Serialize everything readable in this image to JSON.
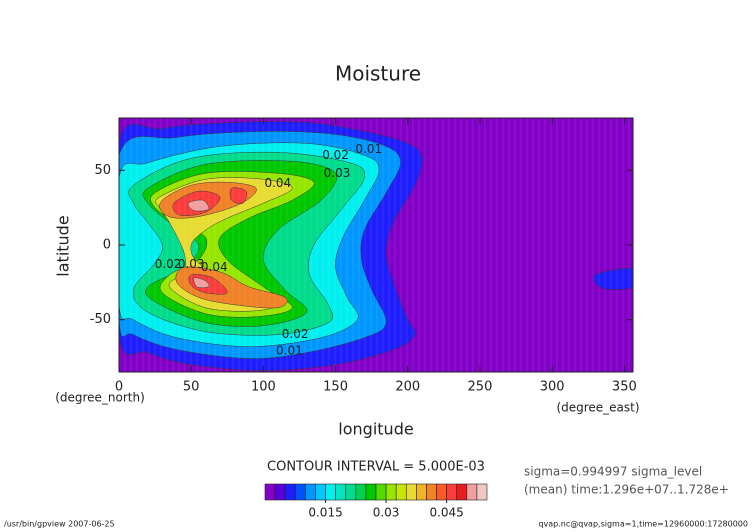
{
  "chart_data": {
    "type": "contour",
    "title": "Moisture",
    "xlabel": "longitude",
    "ylabel": "latitude",
    "xunit": "(degree_east)",
    "yunit": "(degree_north)",
    "xlim": [
      0,
      356
    ],
    "ylim": [
      -85,
      85
    ],
    "xticks": [
      0,
      50,
      100,
      150,
      200,
      250,
      300,
      350
    ],
    "yticks": [
      -50,
      0,
      50
    ],
    "contour_interval": "CONTOUR INTERVAL = 5.000E-03",
    "info": [
      "sigma=0.994997 sigma_level",
      "(mean) time:1.296e+07..1.728e+"
    ],
    "footer_left": "/usr/bin/gpview  2007-06-25",
    "footer_right": "qvap.nc@qvap,sigma=1,time=12960000:17280000",
    "colorbar": {
      "lim": [
        0,
        0.055
      ],
      "levels": [
        0,
        0.0025,
        0.005,
        0.0075,
        0.01,
        0.0125,
        0.015,
        0.0175,
        0.02,
        0.0225,
        0.025,
        0.0275,
        0.03,
        0.0325,
        0.035,
        0.0375,
        0.04,
        0.0425,
        0.045,
        0.0475,
        0.05,
        0.0525
      ],
      "colors": [
        "#8200c8",
        "#5a00dc",
        "#1e1eff",
        "#0050ff",
        "#0096ff",
        "#00c8ff",
        "#00f0f0",
        "#00e6c0",
        "#00dc8c",
        "#00d250",
        "#00c800",
        "#50dc00",
        "#96e600",
        "#c8e600",
        "#e6dc32",
        "#f0b428",
        "#f08228",
        "#fa5a28",
        "#fa3c3c",
        "#e61e1e",
        "#f0a0a0",
        "#f0c8c8"
      ],
      "ticks": [
        0.015,
        0.03,
        0.045
      ]
    },
    "contours": [
      {
        "level": 0.005,
        "points": [
          [
            0,
            68
          ],
          [
            30,
            78
          ],
          [
            80,
            82
          ],
          [
            130,
            82
          ],
          [
            170,
            76
          ],
          [
            200,
            68
          ],
          [
            210,
            58
          ],
          [
            205,
            40
          ],
          [
            190,
            15
          ],
          [
            185,
            -5
          ],
          [
            190,
            -25
          ],
          [
            200,
            -50
          ],
          [
            205,
            -60
          ],
          [
            190,
            -70
          ],
          [
            150,
            -80
          ],
          [
            100,
            -84
          ],
          [
            50,
            -80
          ],
          [
            20,
            -72
          ],
          [
            0,
            -60
          ]
        ]
      },
      {
        "level": 0.005,
        "points": [
          [
            330,
            -20
          ],
          [
            356,
            -16
          ],
          [
            356,
            -28
          ],
          [
            335,
            -29
          ]
        ]
      },
      {
        "level": 0.01,
        "points": [
          [
            0,
            60
          ],
          [
            40,
            72
          ],
          [
            100,
            76
          ],
          [
            150,
            74
          ],
          [
            185,
            66
          ],
          [
            195,
            55
          ],
          [
            185,
            35
          ],
          [
            170,
            10
          ],
          [
            168,
            -10
          ],
          [
            175,
            -30
          ],
          [
            185,
            -52
          ],
          [
            170,
            -62
          ],
          [
            130,
            -72
          ],
          [
            90,
            -76
          ],
          [
            40,
            -70
          ],
          [
            10,
            -60
          ],
          [
            0,
            -50
          ]
        ]
      },
      {
        "level": 0.015,
        "points": [
          [
            0,
            45
          ],
          [
            20,
            55
          ],
          [
            70,
            66
          ],
          [
            130,
            68
          ],
          [
            170,
            60
          ],
          [
            180,
            50
          ],
          [
            170,
            30
          ],
          [
            155,
            5
          ],
          [
            150,
            -15
          ],
          [
            158,
            -35
          ],
          [
            165,
            -50
          ],
          [
            140,
            -62
          ],
          [
            90,
            -68
          ],
          [
            40,
            -62
          ],
          [
            10,
            -50
          ],
          [
            0,
            -40
          ]
        ]
      },
      {
        "level": 0.02,
        "points": [
          [
            10,
            40
          ],
          [
            50,
            58
          ],
          [
            110,
            62
          ],
          [
            160,
            55
          ],
          [
            170,
            45
          ],
          [
            155,
            25
          ],
          [
            135,
            0
          ],
          [
            132,
            -20
          ],
          [
            145,
            -40
          ],
          [
            145,
            -52
          ],
          [
            110,
            -60
          ],
          [
            60,
            -58
          ],
          [
            20,
            -45
          ],
          [
            10,
            -30
          ],
          [
            25,
            -12
          ],
          [
            30,
            0
          ],
          [
            20,
            15
          ],
          [
            10,
            28
          ]
        ]
      },
      {
        "level": 0.025,
        "points": [
          [
            20,
            38
          ],
          [
            60,
            54
          ],
          [
            120,
            56
          ],
          [
            150,
            48
          ],
          [
            140,
            30
          ],
          [
            110,
            10
          ],
          [
            100,
            -10
          ],
          [
            115,
            -30
          ],
          [
            130,
            -45
          ],
          [
            100,
            -54
          ],
          [
            60,
            -52
          ],
          [
            25,
            -38
          ],
          [
            20,
            -28
          ],
          [
            45,
            -15
          ],
          [
            55,
            0
          ],
          [
            35,
            15
          ],
          [
            20,
            28
          ]
        ]
      },
      {
        "level": 0.03,
        "points": [
          [
            25,
            35
          ],
          [
            60,
            48
          ],
          [
            110,
            48
          ],
          [
            135,
            42
          ],
          [
            120,
            30
          ],
          [
            90,
            18
          ],
          [
            70,
            5
          ],
          [
            75,
            -10
          ],
          [
            100,
            -28
          ],
          [
            120,
            -42
          ],
          [
            95,
            -48
          ],
          [
            60,
            -46
          ],
          [
            30,
            -32
          ],
          [
            35,
            -20
          ],
          [
            55,
            -10
          ],
          [
            60,
            5
          ],
          [
            40,
            15
          ],
          [
            25,
            25
          ]
        ]
      },
      {
        "level": 0.035,
        "points": [
          [
            28,
            32
          ],
          [
            60,
            44
          ],
          [
            100,
            44
          ],
          [
            120,
            38
          ],
          [
            100,
            28
          ],
          [
            75,
            18
          ],
          [
            60,
            10
          ],
          [
            50,
            0
          ],
          [
            55,
            -12
          ],
          [
            80,
            -25
          ],
          [
            110,
            -38
          ],
          [
            95,
            -44
          ],
          [
            60,
            -42
          ],
          [
            35,
            -28
          ],
          [
            45,
            -18
          ],
          [
            45,
            -5
          ],
          [
            35,
            15
          ],
          [
            28,
            25
          ]
        ]
      },
      {
        "level": 0.04,
        "points": [
          [
            30,
            30
          ],
          [
            50,
            40
          ],
          [
            75,
            42
          ],
          [
            95,
            38
          ],
          [
            85,
            28
          ],
          [
            60,
            20
          ],
          [
            40,
            18
          ],
          [
            30,
            22
          ]
        ]
      },
      {
        "level": 0.04,
        "points": [
          [
            45,
            -15
          ],
          [
            70,
            -18
          ],
          [
            90,
            -28
          ],
          [
            115,
            -35
          ],
          [
            110,
            -42
          ],
          [
            80,
            -40
          ],
          [
            55,
            -35
          ],
          [
            40,
            -25
          ]
        ]
      },
      {
        "level": 0.045,
        "points": [
          [
            38,
            28
          ],
          [
            55,
            36
          ],
          [
            70,
            32
          ],
          [
            60,
            22
          ],
          [
            42,
            20
          ]
        ]
      },
      {
        "level": 0.045,
        "points": [
          [
            78,
            38
          ],
          [
            88,
            36
          ],
          [
            86,
            28
          ],
          [
            78,
            30
          ]
        ]
      },
      {
        "level": 0.045,
        "points": [
          [
            50,
            -20
          ],
          [
            65,
            -22
          ],
          [
            75,
            -32
          ],
          [
            60,
            -32
          ],
          [
            50,
            -27
          ]
        ]
      },
      {
        "level": 0.05,
        "points": [
          [
            48,
            28
          ],
          [
            58,
            30
          ],
          [
            62,
            24
          ],
          [
            52,
            23
          ]
        ]
      },
      {
        "level": 0.05,
        "points": [
          [
            52,
            -22
          ],
          [
            60,
            -24
          ],
          [
            62,
            -28
          ],
          [
            54,
            -28
          ]
        ]
      }
    ],
    "contour_labels": [
      {
        "x": 173,
        "y": 64,
        "value": 0.01
      },
      {
        "x": 150,
        "y": 60,
        "value": 0.02
      },
      {
        "x": 151,
        "y": 48,
        "value": 0.03
      },
      {
        "x": 110,
        "y": 41,
        "value": 0.04
      },
      {
        "x": 34,
        "y": -13,
        "value": 0.02
      },
      {
        "x": 50,
        "y": -13,
        "value": 0.03
      },
      {
        "x": 66,
        "y": -15,
        "value": 0.04
      },
      {
        "x": 122,
        "y": -60,
        "value": 0.02
      },
      {
        "x": 118,
        "y": -71,
        "value": 0.01
      }
    ]
  }
}
